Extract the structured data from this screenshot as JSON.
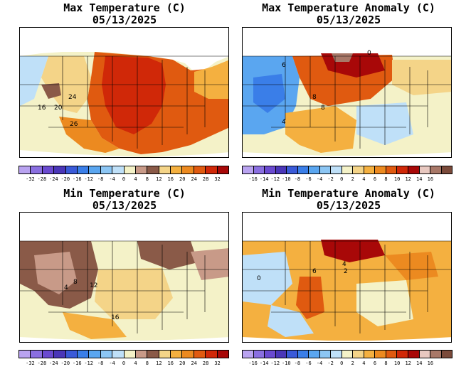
{
  "panels": [
    {
      "id": "max-temperature",
      "title": "Max Temperature (C)",
      "date": "05/13/2025",
      "colorbar_labels": [
        "-32",
        "-28",
        "-24",
        "-20",
        "-16",
        "-12",
        "-8",
        "-4",
        "0",
        "4",
        "8",
        "12",
        "16",
        "20",
        "24",
        "28",
        "32"
      ],
      "colorbar_colors": [
        "#b9a3f0",
        "#8a6fe0",
        "#6a4ad0",
        "#4a36b8",
        "#3a5ad8",
        "#3a7ee8",
        "#5aa6f0",
        "#8cc6f4",
        "#bfe0f8",
        "#f4f2c8",
        "#c89a88",
        "#8a5a48",
        "#f4d488",
        "#f4b040",
        "#ec8a20",
        "#e05a10",
        "#d02808",
        "#a80808"
      ],
      "contour_labels": [
        "24",
        "16",
        "20",
        "26"
      ]
    },
    {
      "id": "max-temperature-anomaly",
      "title": "Max Temperature Anomaly (C)",
      "date": "05/13/2025",
      "colorbar_labels": [
        "-16",
        "-14",
        "-12",
        "-10",
        "-8",
        "-6",
        "-4",
        "-2",
        "0",
        "2",
        "4",
        "6",
        "8",
        "10",
        "12",
        "14",
        "16"
      ],
      "colorbar_colors": [
        "#b9a3f0",
        "#8a6fe0",
        "#6a4ad0",
        "#4a36b8",
        "#3a5ad8",
        "#3a7ee8",
        "#5aa6f0",
        "#8cc6f4",
        "#bfe0f8",
        "#f4f2c8",
        "#f4d488",
        "#f4b040",
        "#ec8a20",
        "#e05a10",
        "#d02808",
        "#a80808",
        "#e8c8c0",
        "#a87868",
        "#7a4a3a"
      ],
      "contour_labels": [
        "6",
        "8",
        "8",
        "0",
        "4"
      ]
    },
    {
      "id": "min-temperature",
      "title": "Min Temperature (C)",
      "date": "05/13/2025",
      "colorbar_labels": [
        "-32",
        "-28",
        "-24",
        "-20",
        "-16",
        "-12",
        "-8",
        "-4",
        "0",
        "4",
        "8",
        "12",
        "16",
        "20",
        "24",
        "28",
        "32"
      ],
      "colorbar_colors": [
        "#b9a3f0",
        "#8a6fe0",
        "#6a4ad0",
        "#4a36b8",
        "#3a5ad8",
        "#3a7ee8",
        "#5aa6f0",
        "#8cc6f4",
        "#bfe0f8",
        "#f4f2c8",
        "#c89a88",
        "#8a5a48",
        "#f4d488",
        "#f4b040",
        "#ec8a20",
        "#e05a10",
        "#d02808",
        "#a80808"
      ],
      "contour_labels": [
        "4",
        "12",
        "16",
        "8"
      ]
    },
    {
      "id": "min-temperature-anomaly",
      "title": "Min Temperature Anomaly (C)",
      "date": "05/13/2025",
      "colorbar_labels": [
        "-16",
        "-14",
        "-12",
        "-10",
        "-8",
        "-6",
        "-4",
        "-2",
        "0",
        "2",
        "4",
        "6",
        "8",
        "10",
        "12",
        "14",
        "16"
      ],
      "colorbar_colors": [
        "#b9a3f0",
        "#8a6fe0",
        "#6a4ad0",
        "#4a36b8",
        "#3a5ad8",
        "#3a7ee8",
        "#5aa6f0",
        "#8cc6f4",
        "#bfe0f8",
        "#f4f2c8",
        "#f4d488",
        "#f4b040",
        "#ec8a20",
        "#e05a10",
        "#d02808",
        "#a80808",
        "#e8c8c0",
        "#a87868",
        "#7a4a3a"
      ],
      "contour_labels": [
        "6",
        "4",
        "2",
        "0"
      ]
    }
  ]
}
